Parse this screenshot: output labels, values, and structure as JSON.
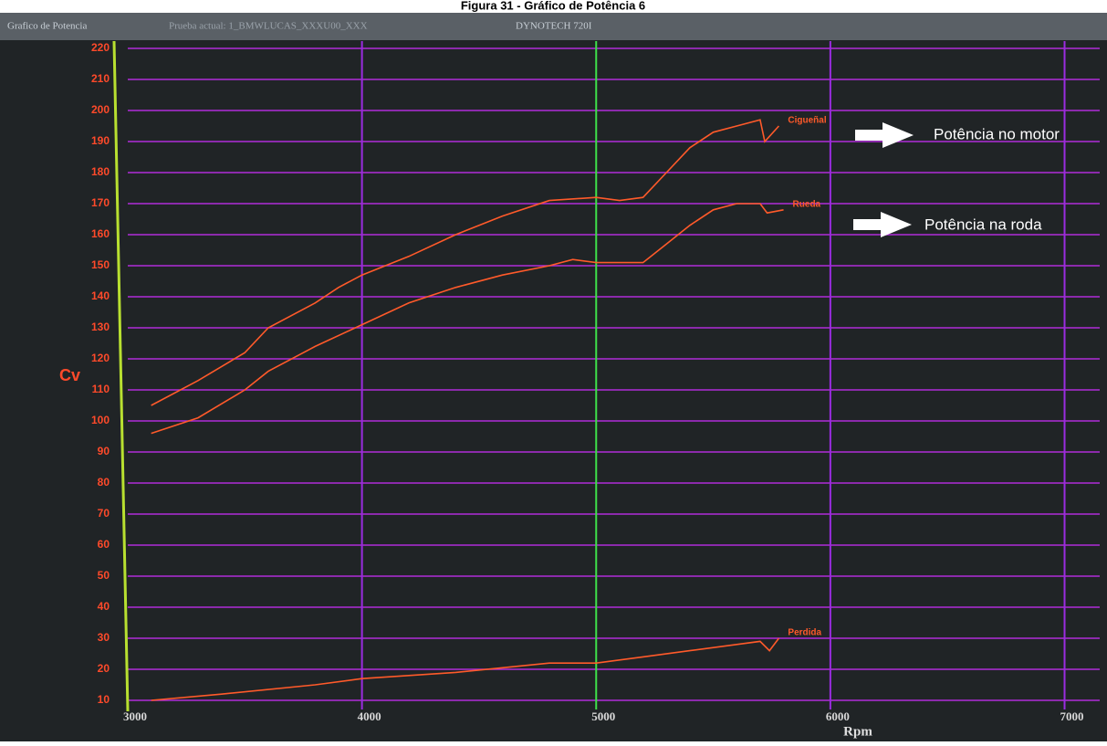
{
  "window_tabs": [
    "Grafico de Potencia",
    "Prueba actual: 1_BMWLUCAS_XXXU00_XXX",
    "DYNOTECH 720I"
  ],
  "chart_data": {
    "type": "line",
    "title": "Figura 31 - Gráfico de Potência 6",
    "x_label": "Rpm",
    "y_label": "Cv",
    "xlim": [
      3000,
      7150
    ],
    "ylim": [
      10,
      220
    ],
    "xticks": [
      3000,
      4000,
      5000,
      6000,
      7000
    ],
    "yticks": [
      10,
      20,
      30,
      40,
      50,
      60,
      70,
      80,
      90,
      100,
      110,
      120,
      130,
      140,
      150,
      160,
      170,
      180,
      190,
      200,
      210,
      220
    ],
    "grid": true,
    "series": [
      {
        "name": "Cigueñal",
        "color": "#ff5a2a",
        "x": [
          3100,
          3300,
          3500,
          3600,
          3800,
          3900,
          4000,
          4200,
          4400,
          4600,
          4800,
          5000,
          5100,
          5200,
          5300,
          5400,
          5500,
          5600,
          5700,
          5720,
          5780
        ],
        "values": [
          105,
          113,
          122,
          130,
          138,
          143,
          147,
          153,
          160,
          166,
          171,
          172,
          171,
          172,
          180,
          188,
          193,
          195,
          197,
          190,
          195
        ]
      },
      {
        "name": "Rueda",
        "color": "#ff5a2a",
        "x": [
          3100,
          3300,
          3500,
          3600,
          3800,
          4000,
          4200,
          4400,
          4600,
          4800,
          4900,
          5000,
          5200,
          5300,
          5400,
          5500,
          5600,
          5700,
          5730,
          5800
        ],
        "values": [
          96,
          101,
          110,
          116,
          124,
          131,
          138,
          143,
          147,
          150,
          152,
          151,
          151,
          157,
          163,
          168,
          170,
          170,
          167,
          168
        ]
      },
      {
        "name": "Perdida",
        "color": "#ff5a2a",
        "x": [
          3100,
          3400,
          3800,
          4000,
          4400,
          4800,
          5000,
          5200,
          5400,
          5600,
          5700,
          5740,
          5780
        ],
        "values": [
          10,
          12,
          15,
          17,
          19,
          22,
          22,
          24,
          26,
          28,
          29,
          26,
          30
        ]
      }
    ],
    "annotations": [
      "Potência no motor",
      "Potência na roda"
    ]
  }
}
